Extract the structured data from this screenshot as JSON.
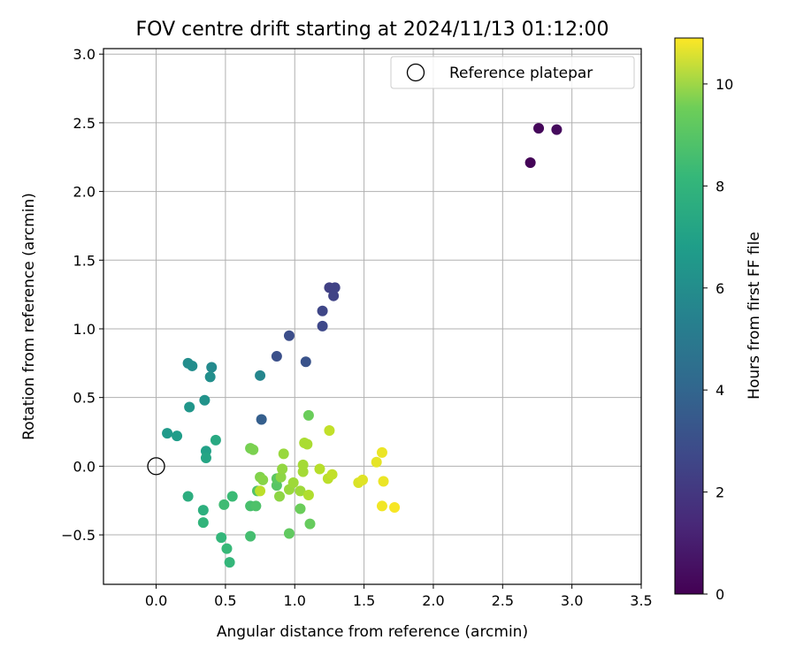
{
  "chart_data": {
    "type": "scatter",
    "title": "FOV centre drift starting at 2024/11/13 01:12:00",
    "xlabel": "Angular distance from reference (arcmin)",
    "ylabel": "Rotation from reference (arcmin)",
    "xlim": [
      -0.38,
      3.5
    ],
    "ylim": [
      -0.86,
      3.04
    ],
    "xticks": [
      0.0,
      0.5,
      1.0,
      1.5,
      2.0,
      2.5,
      3.0,
      3.5
    ],
    "xtick_labels": [
      "0.0",
      "0.5",
      "1.0",
      "1.5",
      "2.0",
      "2.5",
      "3.0",
      "3.5"
    ],
    "yticks": [
      -0.5,
      0.0,
      0.5,
      1.0,
      1.5,
      2.0,
      2.5,
      3.0
    ],
    "ytick_labels": [
      "−0.5",
      "0.0",
      "0.5",
      "1.0",
      "1.5",
      "2.0",
      "2.5",
      "3.0"
    ],
    "grid": true,
    "legend": {
      "position": "top-right",
      "entries": [
        "Reference platepar"
      ]
    },
    "reference_point": {
      "name": "Reference platepar",
      "x": 0.0,
      "y": 0.0,
      "marker": "open-circle"
    },
    "colorbar": {
      "label": "Hours from first FF file",
      "min": 0,
      "max": 10.9,
      "ticks": [
        0,
        2,
        4,
        6,
        8,
        10
      ],
      "tick_labels": [
        "0",
        "2",
        "4",
        "6",
        "8",
        "10"
      ],
      "colormap": "viridis"
    },
    "points": [
      {
        "x": 2.7,
        "y": 2.21,
        "c": 0.1
      },
      {
        "x": 2.76,
        "y": 2.46,
        "c": 0.2
      },
      {
        "x": 2.89,
        "y": 2.45,
        "c": 0.3
      },
      {
        "x": 1.25,
        "y": 1.3,
        "c": 2.1
      },
      {
        "x": 1.29,
        "y": 1.3,
        "c": 2.2
      },
      {
        "x": 1.28,
        "y": 1.24,
        "c": 2.2
      },
      {
        "x": 1.2,
        "y": 1.13,
        "c": 2.3
      },
      {
        "x": 1.2,
        "y": 1.02,
        "c": 2.4
      },
      {
        "x": 0.96,
        "y": 0.95,
        "c": 2.6
      },
      {
        "x": 0.87,
        "y": 0.8,
        "c": 2.7
      },
      {
        "x": 1.08,
        "y": 0.76,
        "c": 2.8
      },
      {
        "x": 0.76,
        "y": 0.34,
        "c": 3.3
      },
      {
        "x": 0.75,
        "y": 0.66,
        "c": 5.0
      },
      {
        "x": 0.4,
        "y": 0.72,
        "c": 5.2
      },
      {
        "x": 0.23,
        "y": 0.75,
        "c": 5.3
      },
      {
        "x": 0.26,
        "y": 0.73,
        "c": 5.3
      },
      {
        "x": 0.39,
        "y": 0.65,
        "c": 5.4
      },
      {
        "x": 0.35,
        "y": 0.48,
        "c": 5.6
      },
      {
        "x": 0.24,
        "y": 0.43,
        "c": 5.7
      },
      {
        "x": 0.08,
        "y": 0.24,
        "c": 5.9
      },
      {
        "x": 0.15,
        "y": 0.22,
        "c": 6.0
      },
      {
        "x": 0.36,
        "y": 0.11,
        "c": 6.2
      },
      {
        "x": 0.36,
        "y": 0.06,
        "c": 6.4
      },
      {
        "x": 0.43,
        "y": 0.19,
        "c": 6.6
      },
      {
        "x": 0.23,
        "y": -0.22,
        "c": 6.8
      },
      {
        "x": 0.34,
        "y": -0.32,
        "c": 6.9
      },
      {
        "x": 0.34,
        "y": -0.41,
        "c": 7.1
      },
      {
        "x": 0.47,
        "y": -0.52,
        "c": 7.2
      },
      {
        "x": 0.51,
        "y": -0.6,
        "c": 7.3
      },
      {
        "x": 0.53,
        "y": -0.7,
        "c": 7.2
      },
      {
        "x": 0.55,
        "y": -0.22,
        "c": 7.4
      },
      {
        "x": 0.49,
        "y": -0.28,
        "c": 7.5
      },
      {
        "x": 0.68,
        "y": -0.51,
        "c": 7.6
      },
      {
        "x": 0.68,
        "y": -0.29,
        "c": 7.7
      },
      {
        "x": 0.72,
        "y": -0.29,
        "c": 7.8
      },
      {
        "x": 0.73,
        "y": -0.18,
        "c": 7.9
      },
      {
        "x": 0.87,
        "y": -0.14,
        "c": 8.0
      },
      {
        "x": 0.87,
        "y": -0.09,
        "c": 8.1
      },
      {
        "x": 0.96,
        "y": -0.49,
        "c": 8.2
      },
      {
        "x": 1.11,
        "y": -0.42,
        "c": 8.3
      },
      {
        "x": 1.04,
        "y": -0.31,
        "c": 8.4
      },
      {
        "x": 1.1,
        "y": 0.37,
        "c": 8.4
      },
      {
        "x": 0.68,
        "y": 0.13,
        "c": 8.6
      },
      {
        "x": 0.7,
        "y": 0.12,
        "c": 8.7
      },
      {
        "x": 0.75,
        "y": -0.08,
        "c": 8.8
      },
      {
        "x": 0.77,
        "y": -0.1,
        "c": 8.9
      },
      {
        "x": 0.89,
        "y": -0.22,
        "c": 9.0
      },
      {
        "x": 0.9,
        "y": -0.08,
        "c": 9.0
      },
      {
        "x": 0.91,
        "y": -0.02,
        "c": 9.1
      },
      {
        "x": 0.92,
        "y": 0.09,
        "c": 9.2
      },
      {
        "x": 0.96,
        "y": -0.17,
        "c": 9.2
      },
      {
        "x": 0.99,
        "y": -0.12,
        "c": 9.3
      },
      {
        "x": 1.04,
        "y": -0.18,
        "c": 9.3
      },
      {
        "x": 1.06,
        "y": -0.04,
        "c": 9.4
      },
      {
        "x": 1.06,
        "y": 0.01,
        "c": 9.4
      },
      {
        "x": 1.07,
        "y": 0.17,
        "c": 9.5
      },
      {
        "x": 1.09,
        "y": 0.16,
        "c": 9.5
      },
      {
        "x": 1.1,
        "y": -0.21,
        "c": 9.6
      },
      {
        "x": 1.18,
        "y": -0.02,
        "c": 9.7
      },
      {
        "x": 1.24,
        "y": -0.09,
        "c": 9.8
      },
      {
        "x": 1.25,
        "y": 0.26,
        "c": 9.9
      },
      {
        "x": 1.27,
        "y": -0.06,
        "c": 9.9
      },
      {
        "x": 0.75,
        "y": -0.18,
        "c": 9.8
      },
      {
        "x": 1.46,
        "y": -0.12,
        "c": 10.3
      },
      {
        "x": 1.49,
        "y": -0.1,
        "c": 10.4
      },
      {
        "x": 1.59,
        "y": 0.03,
        "c": 10.5
      },
      {
        "x": 1.63,
        "y": 0.1,
        "c": 10.6
      },
      {
        "x": 1.64,
        "y": -0.11,
        "c": 10.6
      },
      {
        "x": 1.63,
        "y": -0.29,
        "c": 10.7
      },
      {
        "x": 1.72,
        "y": -0.3,
        "c": 10.8
      }
    ]
  }
}
